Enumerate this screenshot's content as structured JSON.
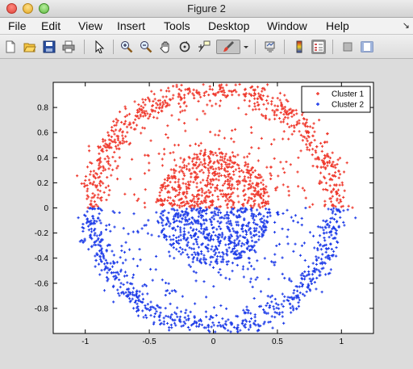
{
  "window": {
    "title": "Figure 2"
  },
  "menu": [
    "File",
    "Edit",
    "View",
    "Insert",
    "Tools",
    "Desktop",
    "Window",
    "Help"
  ],
  "menu_extra": "↘",
  "toolbar_icons": [
    "new-figure-icon",
    "open-file-icon",
    "save-icon",
    "print-icon",
    "pointer-icon",
    "zoom-in-icon",
    "zoom-out-icon",
    "pan-icon",
    "rotate-icon",
    "data-cursor-icon",
    "brush-icon",
    "brush-dropdown-icon",
    "link-plot-icon",
    "colorbar-icon",
    "legend-icon",
    "hide-plot-tools-icon",
    "show-plot-tools-icon"
  ],
  "chart_data": {
    "type": "scatter",
    "title": "",
    "xlabel": "",
    "ylabel": "",
    "xlim": [
      -1.25,
      1.25
    ],
    "ylim": [
      -1.0,
      1.0
    ],
    "xticks": [
      -1,
      -0.5,
      0,
      0.5,
      1
    ],
    "xtick_labels": [
      "-1",
      "-0.5",
      "0",
      "0.5",
      "1"
    ],
    "yticks": [
      0.8,
      0.6,
      0.4,
      0.2,
      0,
      -0.2,
      -0.4,
      -0.6,
      -0.8
    ],
    "ytick_labels": [
      "0.8",
      "0.6",
      "0.4",
      "0.2",
      "0",
      "-0.2",
      "-0.4",
      "-0.6",
      "-0.8"
    ],
    "grid": false,
    "legend": {
      "placement": "top-right",
      "entries": [
        "Cluster 1",
        "Cluster 2"
      ]
    },
    "marker": "+",
    "series": [
      {
        "name": "Cluster 1",
        "color": "#ef3a2e",
        "distribution": "y >= 0 half of both rings",
        "outer_ring": {
          "center": [
            0,
            0
          ],
          "radius": 0.95,
          "width": 0.1,
          "count": 650
        },
        "inner_disk": {
          "center": [
            0,
            0
          ],
          "radius": 0.45,
          "count": 560
        },
        "scatter_between": {
          "count": 140
        }
      },
      {
        "name": "Cluster 2",
        "color": "#1f3de8",
        "distribution": "y < 0 half of both rings",
        "outer_ring": {
          "center": [
            0,
            0
          ],
          "radius": 0.95,
          "width": 0.1,
          "count": 650
        },
        "inner_disk": {
          "center": [
            0,
            0
          ],
          "radius": 0.45,
          "count": 560
        },
        "scatter_between": {
          "count": 140
        }
      }
    ]
  }
}
